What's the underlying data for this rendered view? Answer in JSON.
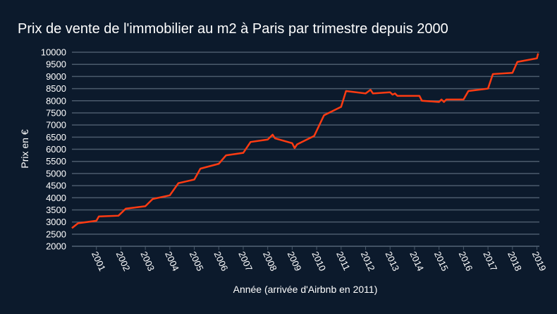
{
  "chart_data": {
    "type": "line",
    "title": "Prix de vente de l'immobilier au m2 à Paris par trimestre depuis 2000",
    "xlabel": "Année (arrivée d'Airbnb en 2011)",
    "ylabel": "Prix en €",
    "x": [
      2000.0,
      2000.25,
      2001.0,
      2001.1,
      2001.9,
      2002.2,
      2003.0,
      2003.3,
      2004.0,
      2004.35,
      2005.0,
      2005.25,
      2006.0,
      2006.3,
      2007.0,
      2007.3,
      2008.0,
      2008.2,
      2008.3,
      2009.0,
      2009.1,
      2009.2,
      2009.9,
      2010.3,
      2011.0,
      2011.2,
      2012.0,
      2012.2,
      2012.3,
      2013.0,
      2013.1,
      2013.2,
      2013.3,
      2014.2,
      2014.3,
      2015.0,
      2015.1,
      2015.2,
      2015.3,
      2016.0,
      2016.2,
      2017.0,
      2017.2,
      2018.0,
      2018.2,
      2019.0,
      2019.05
    ],
    "series": [
      {
        "name": "Prix",
        "color": "#ff3b12",
        "values": [
          2750,
          2950,
          3050,
          3230,
          3260,
          3550,
          3650,
          3950,
          4100,
          4600,
          4750,
          5200,
          5400,
          5750,
          5850,
          6300,
          6400,
          6600,
          6450,
          6250,
          6050,
          6200,
          6550,
          7400,
          7750,
          8400,
          8300,
          8450,
          8300,
          8350,
          8250,
          8300,
          8200,
          8200,
          8000,
          7950,
          8050,
          7950,
          8050,
          8050,
          8400,
          8500,
          9100,
          9150,
          9600,
          9750,
          9950
        ]
      }
    ],
    "xlim": [
      2000,
      2019.1
    ],
    "xticks": [
      2001,
      2002,
      2003,
      2004,
      2005,
      2006,
      2007,
      2008,
      2009,
      2010,
      2011,
      2012,
      2013,
      2014,
      2015,
      2016,
      2017,
      2018,
      2019
    ],
    "ylim": [
      2000,
      10000
    ],
    "yticks": [
      2000,
      2500,
      3000,
      3500,
      4000,
      4500,
      5000,
      5500,
      6000,
      6500,
      7000,
      7500,
      8000,
      8500,
      9000,
      9500,
      10000
    ],
    "grid": true
  }
}
